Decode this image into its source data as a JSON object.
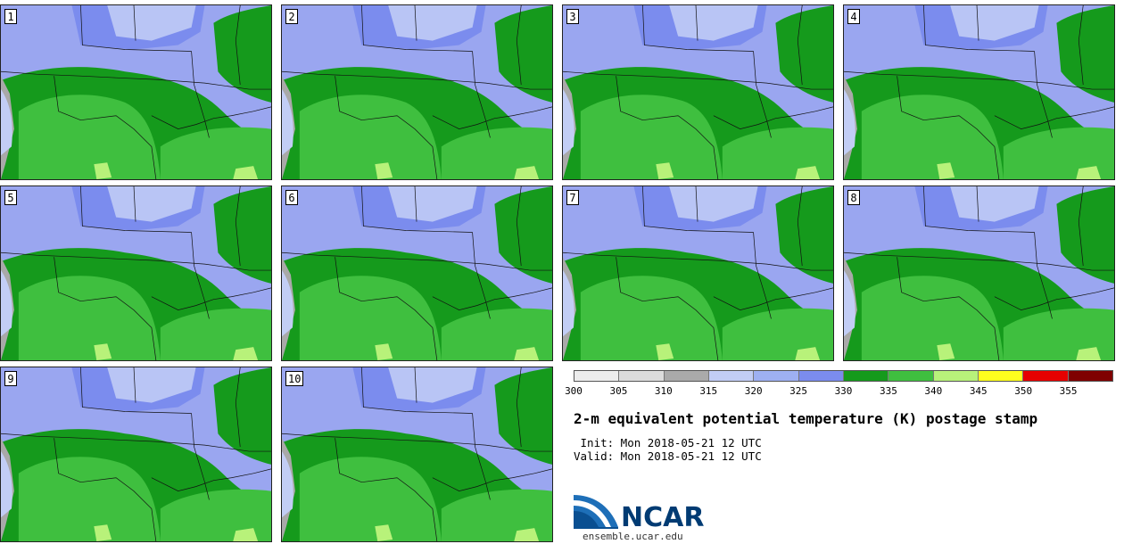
{
  "panels": [
    {
      "label": "1"
    },
    {
      "label": "2"
    },
    {
      "label": "3"
    },
    {
      "label": "4"
    },
    {
      "label": "5"
    },
    {
      "label": "6"
    },
    {
      "label": "7"
    },
    {
      "label": "8"
    },
    {
      "label": "9"
    },
    {
      "label": "10"
    }
  ],
  "colorbar": {
    "ticks": [
      "300",
      "305",
      "310",
      "315",
      "320",
      "325",
      "330",
      "335",
      "340",
      "345",
      "350",
      "355"
    ],
    "colors": [
      "#ededed",
      "#dcdcdc",
      "#aaaaaa",
      "#c2cdf5",
      "#9eb0f2",
      "#7b8cee",
      "#159a1c",
      "#3fbf3f",
      "#b8f27a",
      "#ffff1e",
      "#e60000",
      "#7f0000"
    ]
  },
  "title": "2-m equivalent potential temperature (K) postage stamp",
  "init_line": " Init: Mon 2018-05-21 12 UTC",
  "valid_line": "Valid: Mon 2018-05-21 12 UTC",
  "logo": {
    "text": "NCAR",
    "site": "ensemble.ucar.edu"
  }
}
